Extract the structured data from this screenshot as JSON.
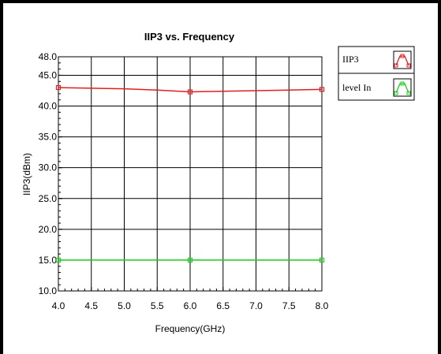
{
  "chart_data": {
    "type": "line",
    "title": "IIP3 vs. Frequency",
    "xlabel": "Frequency(GHz)",
    "ylabel": "IIP3(dBm)",
    "xlim": [
      4.0,
      8.0
    ],
    "ylim": [
      10.0,
      48.0
    ],
    "x_ticks": [
      4.0,
      4.5,
      5.0,
      5.5,
      6.0,
      6.5,
      7.0,
      7.5,
      8.0
    ],
    "y_ticks": [
      10.0,
      15.0,
      20.0,
      25.0,
      30.0,
      35.0,
      40.0,
      45.0,
      48.0
    ],
    "grid": true,
    "legend_position": "top-right outside",
    "series": [
      {
        "name": "IIP3",
        "color": "#e02020",
        "x": [
          4.0,
          4.5,
          5.0,
          5.5,
          6.0,
          6.5,
          7.0,
          7.5,
          8.0
        ],
        "y": [
          43.0,
          42.9,
          42.8,
          42.6,
          42.3,
          42.4,
          42.5,
          42.6,
          42.7
        ],
        "markers_at": [
          4.0,
          6.0,
          8.0
        ]
      },
      {
        "name": "level In",
        "color": "#22cc22",
        "x": [
          4.0,
          6.0,
          8.0
        ],
        "y": [
          15.0,
          15.0,
          15.0
        ],
        "markers_at": [
          4.0,
          6.0,
          8.0
        ]
      }
    ]
  }
}
